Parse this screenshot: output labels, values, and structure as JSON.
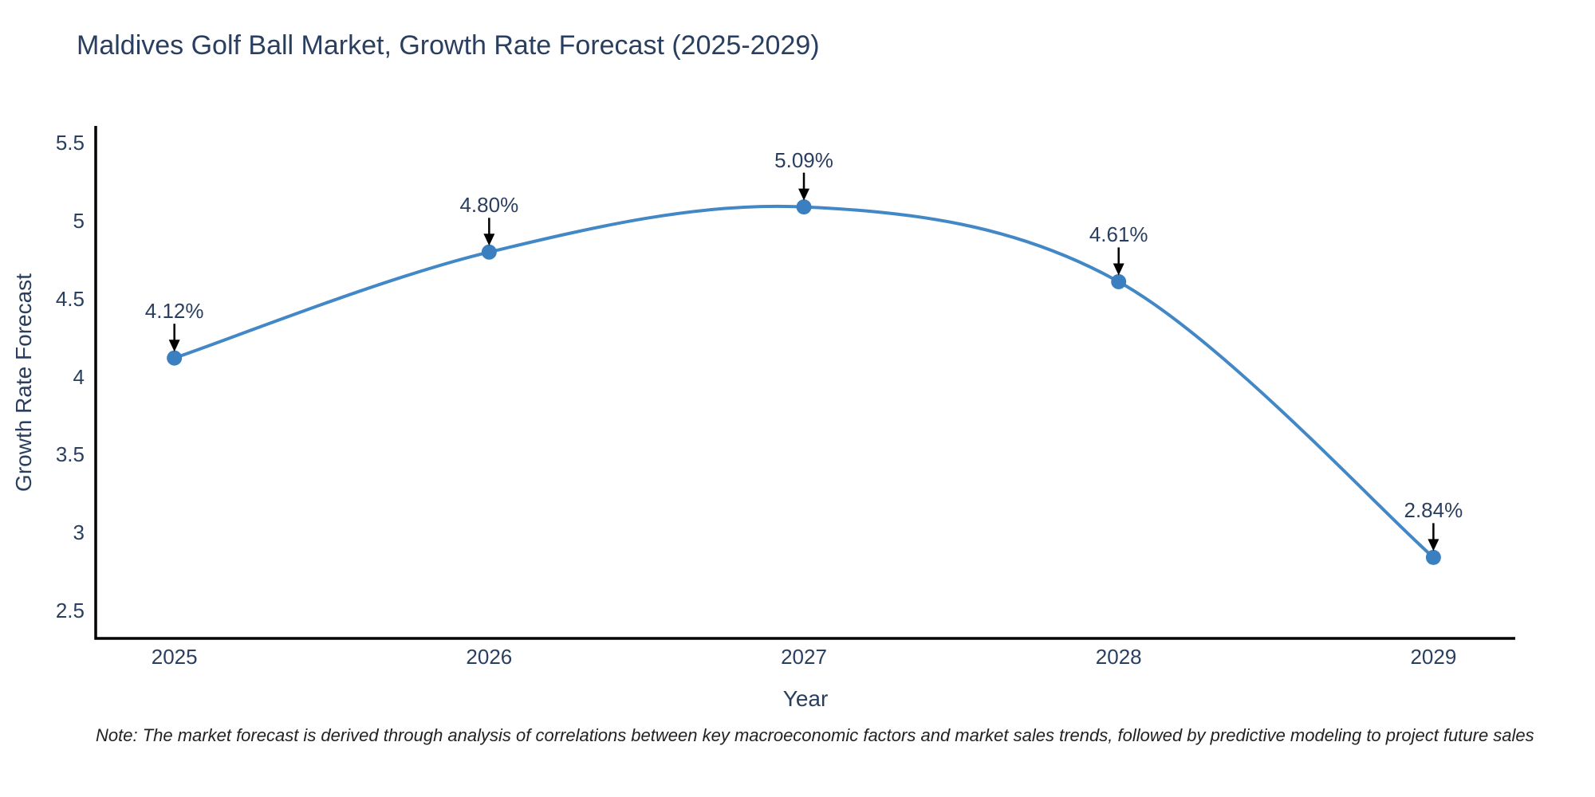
{
  "title": "Maldives Golf Ball Market, Growth Rate Forecast (2025-2029)",
  "note": "Note: The market forecast is derived through analysis of correlations between key macroeconomic factors and market sales trends, followed by predictive modeling to project future sales",
  "chart_data": {
    "type": "line",
    "title": "Maldives Golf Ball Market, Growth Rate Forecast (2025-2029)",
    "xlabel": "Year",
    "ylabel": "Growth Rate Forecast",
    "x": [
      2025,
      2026,
      2027,
      2028,
      2029
    ],
    "y": [
      4.12,
      4.8,
      5.09,
      4.61,
      2.84
    ],
    "point_labels": [
      "4.12%",
      "4.80%",
      "5.09%",
      "4.61%",
      "2.84%"
    ],
    "x_ticks": [
      2025,
      2026,
      2027,
      2028,
      2029
    ],
    "y_ticks": [
      2.5,
      3,
      3.5,
      4,
      4.5,
      5,
      5.5
    ],
    "xlim": [
      2024.75,
      2029.26
    ],
    "ylim": [
      2.32,
      5.61
    ],
    "line_shape": "spline",
    "grid": false,
    "legend_position": "none",
    "annotation_arrows": true,
    "colors": {
      "line": "#4287c6",
      "marker": "#3a80c0",
      "arrow": "#000000",
      "axis_line": "#000000",
      "chart_text": "#2a3f5f",
      "note_text": "#222222",
      "background": "#ffffff"
    }
  }
}
